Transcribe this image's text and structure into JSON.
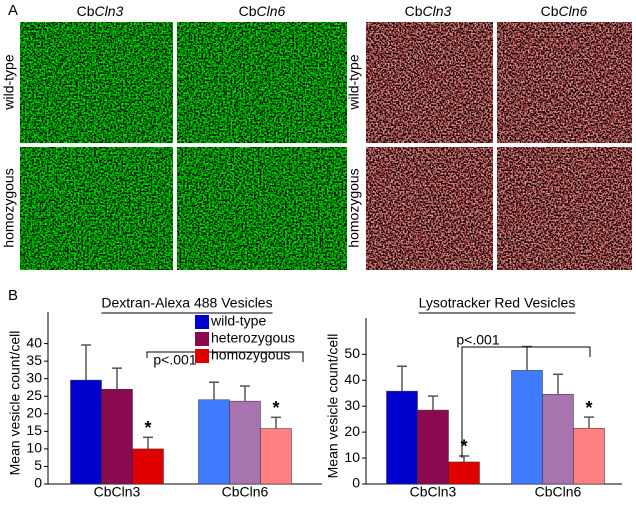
{
  "panel_a": {
    "label": "A",
    "left_columns": [
      {
        "prefix": "Cb",
        "gene": "Cln3"
      },
      {
        "prefix": "Cb",
        "gene": "Cln6"
      }
    ],
    "right_columns": [
      {
        "prefix": "Cb",
        "gene": "Cln3"
      },
      {
        "prefix": "Cb",
        "gene": "Cln6"
      }
    ],
    "rows": [
      "wild-type",
      "homozygous"
    ]
  },
  "panel_b": {
    "label": "B"
  },
  "chart_data": [
    {
      "type": "bar",
      "title": "Dextran-Alexa 488 Vesicles",
      "y_label": "Mean vesicle count/cell",
      "categories": [
        "CbCln3",
        "CbCln6"
      ],
      "series": [
        {
          "name": "wild-type",
          "color": [
            "#0000cc",
            "#3f7bff"
          ],
          "values": [
            29.6,
            24
          ],
          "errors": [
            10,
            5
          ]
        },
        {
          "name": "heterozygous",
          "color": [
            "#8b0a4f",
            "#a874b0"
          ],
          "values": [
            27,
            23.6
          ],
          "errors": [
            6,
            4.3
          ]
        },
        {
          "name": "homozygous",
          "color": [
            "#e00000",
            "#ff8080"
          ],
          "values": [
            10,
            15.8
          ],
          "errors": [
            3.3,
            3.2
          ]
        }
      ],
      "significance_marker": "*",
      "annotation": "p<.001",
      "ylim": [
        0,
        49
      ],
      "yticks": [
        0,
        5,
        10,
        15,
        20,
        25,
        30,
        35,
        40
      ],
      "legend": true
    },
    {
      "type": "bar",
      "title": "Lysotracker Red Vesicles",
      "y_label": "Mean vesicle count/cell",
      "categories": [
        "CbCln3",
        "CbCln6"
      ],
      "series": [
        {
          "name": "wild-type",
          "color": [
            "#0000cc",
            "#3f7bff"
          ],
          "values": [
            35.8,
            43.8
          ],
          "errors": [
            9.6,
            9.2
          ]
        },
        {
          "name": "heterozygous",
          "color": [
            "#8b0a4f",
            "#a874b0"
          ],
          "values": [
            28.5,
            34.6
          ],
          "errors": [
            5.4,
            7.7
          ]
        },
        {
          "name": "homozygous",
          "color": [
            "#e00000",
            "#ff8080"
          ],
          "values": [
            8.5,
            21.5
          ],
          "errors": [
            2.3,
            4.3
          ]
        }
      ],
      "significance_marker": "*",
      "annotation": "p<.001",
      "ylim": [
        0,
        64
      ],
      "yticks": [
        0,
        10,
        20,
        30,
        40,
        50
      ],
      "legend": false
    }
  ]
}
